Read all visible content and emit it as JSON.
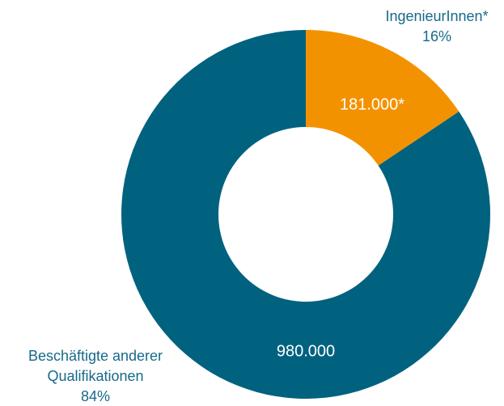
{
  "chart_data": {
    "type": "donut",
    "categories": [
      "IngenieurInnen*",
      "Beschäftigte anderer Qualifikationen"
    ],
    "values": [
      181000,
      980000
    ],
    "value_labels": [
      "181.000*",
      "980.000"
    ],
    "percent_labels": [
      "16%",
      "84%"
    ],
    "colors": [
      "#f39200",
      "#00627f"
    ]
  }
}
